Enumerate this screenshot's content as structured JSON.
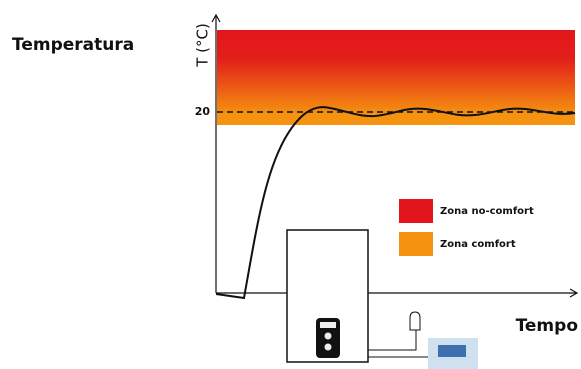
{
  "title": "Temperatura",
  "y_axis_label": "T (°C)",
  "reference_label": "20",
  "legend": [
    {
      "label": "Zona no-comfort",
      "color": "#e3151c"
    },
    {
      "label": "Zona comfort",
      "color": "#f5920f"
    }
  ],
  "x_axis_label": "Tempo"
}
